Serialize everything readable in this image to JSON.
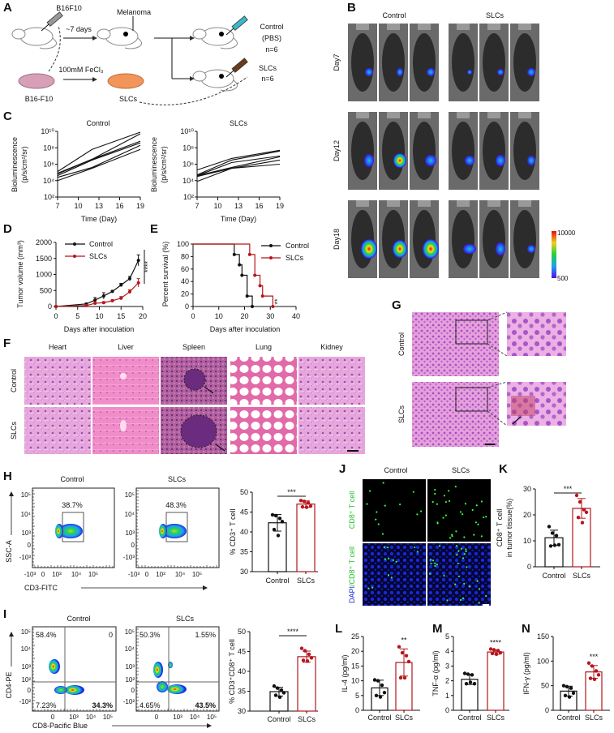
{
  "panel_labels": {
    "A": "A",
    "B": "B",
    "C": "C",
    "D": "D",
    "E": "E",
    "F": "F",
    "G": "G",
    "H": "H",
    "I": "I",
    "J": "J",
    "K": "K",
    "L": "L",
    "M": "M",
    "N": "N"
  },
  "panel_a": {
    "cell_injection": "B16F10",
    "wait": "~7 days",
    "tumor": "Melanoma",
    "control_group": "Control",
    "control_vehicle": "(PBS)",
    "control_n": "n=6",
    "slcs_group": "SLCs",
    "slcs_n": "n=6",
    "treatment": "100mM FeCl₃",
    "dish_cells": "B16-F10",
    "dish_slcs": "SLCs"
  },
  "panel_b": {
    "groups": [
      "Control",
      "SLCs"
    ],
    "days": [
      "Day7",
      "Day12",
      "Day18"
    ],
    "colorbar_max": "10000",
    "colorbar_min": "500"
  },
  "panel_f": {
    "organs": [
      "Heart",
      "Liver",
      "Spleen",
      "Lung",
      "Kidney"
    ],
    "rows": [
      "Control",
      "SLCs"
    ]
  },
  "panel_g": {
    "rows": [
      "Control",
      "SLCs"
    ]
  },
  "panel_h": {
    "titles": [
      "Control",
      "SLCs"
    ],
    "gates": [
      "38.7%",
      "48.3%"
    ],
    "x_axis": "CD3-FITC",
    "y_axis": "SSC-A",
    "x_ticks": [
      "-10³",
      "0",
      "10³",
      "10⁴",
      "10⁵"
    ],
    "y_ticks": [
      "10⁵",
      "10⁴",
      "10³",
      "0",
      "-10³"
    ]
  },
  "panel_i": {
    "titles": [
      "Control",
      "SLCs"
    ],
    "quadrants": [
      [
        "58.4%",
        "0",
        "7.23%",
        "34.3%"
      ],
      [
        "50.3%",
        "1.55%",
        "4.65%",
        "43.5%"
      ]
    ],
    "x_axis": "CD8-Pacific Blue",
    "y_axis": "CD4-PE",
    "x_ticks": [
      "0",
      "10³",
      "10⁴",
      "10⁵"
    ],
    "y_ticks": [
      "10⁵",
      "10⁴",
      "10³",
      "10²",
      "0",
      "-10²"
    ]
  },
  "panel_j": {
    "titles": [
      "Control",
      "SLCs"
    ],
    "row1": "CD8⁺ T cell",
    "row2_dapi": "DAPI",
    "row2_cd8": "/CD8⁺ T cell"
  },
  "colors": {
    "control": "#111111",
    "slcs": "#b5161c",
    "dapi": "#1a2bd6",
    "cd8": "#22c02a"
  },
  "chart_data": [
    {
      "id": "C_control",
      "type": "line",
      "title": "Control",
      "xlabel": "Time (Day)",
      "ylabel": [
        "Bioluminescence",
        "(p/s/cm²/sr)"
      ],
      "log_y": true,
      "xlim": [
        7,
        19
      ],
      "x_ticks": [
        "7",
        "10",
        "13",
        "16",
        "19"
      ],
      "y_ticks": [
        "10²",
        "10⁴",
        "10⁶",
        "10⁸",
        "10¹⁰"
      ],
      "ylim_log10": [
        2,
        10
      ],
      "x": [
        7,
        12,
        19
      ],
      "series_log10": [
        [
          5.1,
          7.8,
          9.9
        ],
        [
          4.9,
          6.6,
          9.7
        ],
        [
          4.8,
          6.6,
          8.8
        ],
        [
          4.6,
          6.5,
          8.6
        ],
        [
          4.4,
          5.6,
          8.3
        ],
        [
          4.0,
          5.5,
          7.8
        ]
      ]
    },
    {
      "id": "C_slcs",
      "type": "line",
      "title": "SLCs",
      "xlabel": "Time (Day)",
      "ylabel": [
        "Bioluminescence",
        "(p/s/cm²/sr)"
      ],
      "log_y": true,
      "xlim": [
        7,
        19
      ],
      "x_ticks": [
        "7",
        "10",
        "13",
        "16",
        "19"
      ],
      "y_ticks": [
        "10²",
        "10⁴",
        "10⁶",
        "10⁸",
        "10¹⁰"
      ],
      "ylim_log10": [
        2,
        10
      ],
      "x": [
        7,
        12,
        19
      ],
      "series_log10": [
        [
          5.3,
          6.7,
          7.7
        ],
        [
          4.7,
          6.5,
          7.6
        ],
        [
          4.6,
          6.2,
          7.0
        ],
        [
          4.6,
          5.6,
          6.9
        ],
        [
          4.5,
          5.5,
          6.5
        ],
        [
          3.9,
          5.5,
          6.0
        ]
      ]
    },
    {
      "id": "D",
      "type": "line",
      "xlabel": "Days after inoculation",
      "ylabel": "Tumor volume (mm³)",
      "xlim": [
        0,
        20
      ],
      "ylim": [
        0,
        2000
      ],
      "x_ticks": [
        "0",
        "5",
        "10",
        "15",
        "20"
      ],
      "y_ticks": [
        "0",
        "500",
        "1000",
        "1500",
        "2000"
      ],
      "x": [
        0,
        7,
        9,
        11,
        13,
        15,
        17,
        19
      ],
      "series": [
        {
          "name": "Control",
          "values": [
            0,
            80,
            200,
            330,
            470,
            670,
            870,
            1440
          ],
          "errors": [
            0,
            20,
            80,
            100,
            30,
            50,
            70,
            170
          ]
        },
        {
          "name": "SLCs",
          "values": [
            0,
            30,
            100,
            120,
            180,
            260,
            460,
            740
          ],
          "errors": [
            0,
            10,
            30,
            30,
            30,
            50,
            60,
            130
          ]
        }
      ],
      "significance": "****"
    },
    {
      "id": "E",
      "type": "line",
      "subtype": "survival",
      "xlabel": "Days after inoculation",
      "ylabel": "Percent survival (%)",
      "xlim": [
        0,
        40
      ],
      "ylim": [
        0,
        100
      ],
      "x_ticks": [
        "0",
        "10",
        "20",
        "30",
        "40"
      ],
      "y_ticks": [
        "0",
        "20",
        "40",
        "60",
        "80",
        "100"
      ],
      "series": [
        {
          "name": "Control",
          "steps": [
            [
              0,
              100
            ],
            [
              16,
              83.3
            ],
            [
              18,
              66.7
            ],
            [
              19,
              50
            ],
            [
              21,
              16.7
            ],
            [
              23,
              0
            ]
          ]
        },
        {
          "name": "SLCs",
          "steps": [
            [
              0,
              100
            ],
            [
              22,
              83.3
            ],
            [
              24,
              50
            ],
            [
              26,
              33.3
            ],
            [
              27,
              16.7
            ],
            [
              31,
              0
            ]
          ]
        }
      ],
      "significance": "**"
    },
    {
      "id": "H",
      "type": "bar",
      "ylabel": "% CD3⁺ T cell",
      "ylim": [
        30,
        50
      ],
      "y_ticks": [
        "30",
        "35",
        "40",
        "45",
        "50"
      ],
      "categories": [
        "Control",
        "SLCs"
      ],
      "means": [
        42.3,
        47.0
      ],
      "sd": [
        2.1,
        0.8
      ],
      "points": [
        [
          44.3,
          44.1,
          43.4,
          42.6,
          40.6,
          39.1
        ],
        [
          47.9,
          47.7,
          47.3,
          46.5,
          46.3,
          46.2
        ]
      ],
      "significance": "***"
    },
    {
      "id": "I",
      "type": "bar",
      "ylabel": "% CD3⁺CD8⁺ T cell",
      "ylim": [
        30,
        50
      ],
      "y_ticks": [
        "30",
        "35",
        "40",
        "45",
        "50"
      ],
      "categories": [
        "Control",
        "SLCs"
      ],
      "means": [
        34.9,
        43.7
      ],
      "sd": [
        1.1,
        1.4
      ],
      "points": [
        [
          36.3,
          35.8,
          35.3,
          34.6,
          34.0,
          33.5
        ],
        [
          45.8,
          45.2,
          44.3,
          43.4,
          42.8,
          42.6
        ]
      ],
      "significance": "****"
    },
    {
      "id": "K",
      "type": "bar",
      "ylabel": [
        "CD8⁺ T cell",
        "in tumor tissue(%)"
      ],
      "ylim": [
        0,
        30
      ],
      "y_ticks": [
        "0",
        "10",
        "20",
        "30"
      ],
      "categories": [
        "Control",
        "SLCs"
      ],
      "means": [
        11.2,
        22.5
      ],
      "sd": [
        2.9,
        3.8
      ],
      "points": [
        [
          15.5,
          13.0,
          12.0,
          8.5,
          8.0,
          8.3
        ],
        [
          27.5,
          25.0,
          22.0,
          21.0,
          19.0,
          17.0
        ]
      ],
      "significance": "***"
    },
    {
      "id": "L",
      "type": "bar",
      "ylabel": "IL-4 (pg/ml)",
      "ylim": [
        0,
        25
      ],
      "y_ticks": [
        "0",
        "5",
        "10",
        "15",
        "20",
        "25"
      ],
      "categories": [
        "Control",
        "SLCs"
      ],
      "means": [
        7.6,
        16.2
      ],
      "sd": [
        2.6,
        4.6
      ],
      "points": [
        [
          10.3,
          10.0,
          8.5,
          6.0,
          5.0,
          4.5
        ],
        [
          21.5,
          19.5,
          18.5,
          16.5,
          11.0,
          11.0
        ]
      ],
      "significance": "**"
    },
    {
      "id": "M",
      "type": "bar",
      "ylabel": "TNF-α (pg/ml)",
      "ylim": [
        0,
        5
      ],
      "y_ticks": [
        "0",
        "1",
        "2",
        "3",
        "4",
        "5"
      ],
      "categories": [
        "Control",
        "SLCs"
      ],
      "means": [
        2.1,
        3.95
      ],
      "sd": [
        0.35,
        0.15
      ],
      "points": [
        [
          2.5,
          2.45,
          2.4,
          1.8,
          1.8,
          1.9
        ],
        [
          4.15,
          4.1,
          4.05,
          3.9,
          3.85,
          3.8
        ]
      ],
      "significance": "****"
    },
    {
      "id": "N",
      "type": "bar",
      "ylabel": "IFN-γ (pg/ml)",
      "ylim": [
        0,
        150
      ],
      "y_ticks": [
        "0",
        "50",
        "100",
        "150"
      ],
      "categories": [
        "Control",
        "SLCs"
      ],
      "means": [
        39,
        78
      ],
      "sd": [
        10,
        13
      ],
      "points": [
        [
          50,
          48,
          45,
          35,
          30,
          27
        ],
        [
          96,
          90,
          80,
          72,
          65,
          63
        ]
      ],
      "significance": "***"
    }
  ]
}
